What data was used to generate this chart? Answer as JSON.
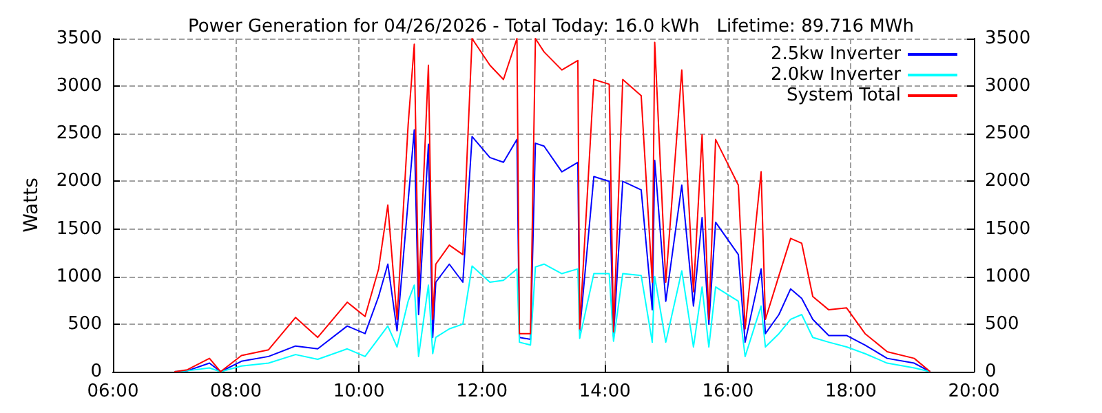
{
  "chart_data": {
    "type": "line",
    "title": "Power Generation for 04/26/2026 - Total Today: 16.0 kWh   Lifetime: 89.716 MWh",
    "ylabel": "Watts",
    "x": [
      7.0,
      7.21,
      7.57,
      7.75,
      8.09,
      8.53,
      8.97,
      9.33,
      9.81,
      10.1,
      10.32,
      10.47,
      10.62,
      10.8,
      10.9,
      10.97,
      11.13,
      11.2,
      11.25,
      11.47,
      11.69,
      11.84,
      12.13,
      12.35,
      12.57,
      12.61,
      12.79,
      12.87,
      13.01,
      13.3,
      13.56,
      13.59,
      13.82,
      14.07,
      14.14,
      14.29,
      14.59,
      14.77,
      14.81,
      14.99,
      15.25,
      15.44,
      15.58,
      15.69,
      15.8,
      16.17,
      16.28,
      16.54,
      16.61,
      16.83,
      17.02,
      17.2,
      17.38,
      17.64,
      17.93,
      18.23,
      18.59,
      19.03,
      19.29
    ],
    "series": [
      {
        "name": "2.5kw Inverter",
        "color": "#0000ff",
        "values": [
          0,
          10,
          90,
          0,
          110,
          160,
          270,
          240,
          480,
          400,
          790,
          1130,
          430,
          1790,
          2540,
          600,
          2390,
          360,
          940,
          1130,
          940,
          2470,
          2250,
          2200,
          2440,
          360,
          340,
          2400,
          2370,
          2100,
          2200,
          430,
          2050,
          2000,
          370,
          2000,
          1910,
          650,
          2220,
          740,
          1960,
          690,
          1620,
          500,
          1570,
          1230,
          310,
          1080,
          400,
          600,
          870,
          770,
          550,
          380,
          380,
          280,
          140,
          90,
          0
        ]
      },
      {
        "name": "2.0kw Inverter",
        "color": "#00ffff",
        "values": [
          0,
          10,
          40,
          0,
          60,
          90,
          180,
          130,
          240,
          160,
          350,
          480,
          260,
          740,
          910,
          160,
          910,
          190,
          360,
          450,
          500,
          1110,
          940,
          960,
          1080,
          310,
          280,
          1100,
          1130,
          1030,
          1080,
          350,
          1030,
          1030,
          320,
          1030,
          1010,
          310,
          1000,
          310,
          1060,
          260,
          890,
          260,
          890,
          740,
          160,
          690,
          260,
          400,
          550,
          600,
          360,
          310,
          260,
          190,
          90,
          40,
          0
        ]
      },
      {
        "name": "System Total",
        "color": "#ff0000",
        "values": [
          0,
          20,
          140,
          0,
          170,
          230,
          570,
          360,
          730,
          580,
          1080,
          1750,
          550,
          2590,
          3440,
          790,
          3220,
          550,
          1130,
          1330,
          1230,
          3500,
          3220,
          3070,
          3500,
          400,
          400,
          3500,
          3360,
          3170,
          3270,
          450,
          3070,
          3020,
          420,
          3070,
          2900,
          940,
          3460,
          940,
          3170,
          840,
          2490,
          550,
          2440,
          1960,
          450,
          2100,
          550,
          1010,
          1400,
          1350,
          790,
          650,
          670,
          400,
          210,
          140,
          0
        ]
      }
    ],
    "xlim": [
      6,
      20
    ],
    "xticks": [
      {
        "value": 6,
        "label": "06:00"
      },
      {
        "value": 8,
        "label": "08:00"
      },
      {
        "value": 10,
        "label": "10:00"
      },
      {
        "value": 12,
        "label": "12:00"
      },
      {
        "value": 14,
        "label": "14:00"
      },
      {
        "value": 16,
        "label": "16:00"
      },
      {
        "value": 18,
        "label": "18:00"
      },
      {
        "value": 20,
        "label": "20:00"
      }
    ],
    "ylim": [
      0,
      3500
    ],
    "yticks": [
      0,
      500,
      1000,
      1500,
      2000,
      2500,
      3000,
      3500
    ],
    "y2lim": [
      0,
      3500
    ],
    "y2ticks": [
      0,
      500,
      1000,
      1500,
      2000,
      2500,
      3000,
      3500
    ],
    "grid": true,
    "legend": "top right",
    "marker": "none",
    "line_style": "solid"
  }
}
